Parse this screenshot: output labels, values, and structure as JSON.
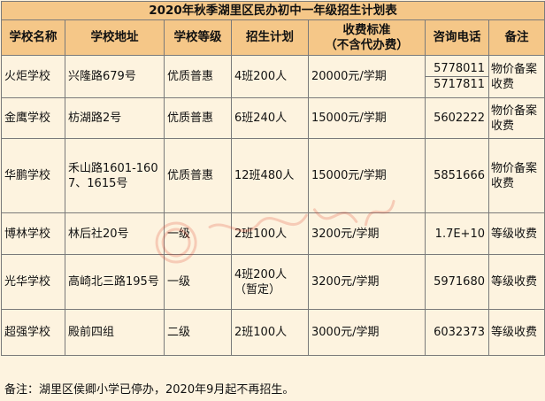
{
  "title": "2020年秋季湖里区民办初中一年级招生计划表",
  "headers": {
    "name": "学校名称",
    "address": "学校地址",
    "level": "学校等级",
    "plan": "招生计划",
    "fee_line1": "收费标准",
    "fee_line2": "（不含代办费）",
    "phone": "咨询电话",
    "note": "备注"
  },
  "rows": [
    {
      "name": "火炬学校",
      "address": "兴隆路679号",
      "level": "优质普惠",
      "plan": "4班200人",
      "fee": "20000元/学期",
      "phone": [
        "5778011",
        "5717811"
      ],
      "note": "物价备案收费"
    },
    {
      "name": "金鹰学校",
      "address": "枋湖路2号",
      "level": "优质普惠",
      "plan": "6班240人",
      "fee": "15000元/学期",
      "phone": [
        "5602222"
      ],
      "note": "物价备案收费"
    },
    {
      "name": "华鹏学校",
      "address": "禾山路1601-1607、1615号",
      "level": "优质普惠",
      "plan": "12班480人",
      "fee": "15000元/学期",
      "phone": [
        "5851666"
      ],
      "note": "物价备案收费"
    },
    {
      "name": "博林学校",
      "address": "林后社20号",
      "level": "一级",
      "plan": "2班100人",
      "fee": "3200元/学期",
      "phone": [
        "1.7E+10"
      ],
      "note": "等级收费"
    },
    {
      "name": "光华学校",
      "address": "高崎北三路195号",
      "level": "一级",
      "plan": "4班200人（暂定）",
      "fee": "3200元/学期",
      "phone": [
        "5971680"
      ],
      "note": "等级收费"
    },
    {
      "name": "超强学校",
      "address": "殿前四组",
      "level": "二级",
      "plan": "2班100人",
      "fee": "3000元/学期",
      "phone": [
        "6032373"
      ],
      "note": "等级收费"
    }
  ],
  "footnote": "备注：湖里区侯卿小学已停办，2020年9月起不再招生。",
  "watermark_text": "厦门日报",
  "colors": {
    "header_bg": "#f5c788",
    "body_bg": "#fdf3df",
    "watermark": "#e0412b"
  }
}
